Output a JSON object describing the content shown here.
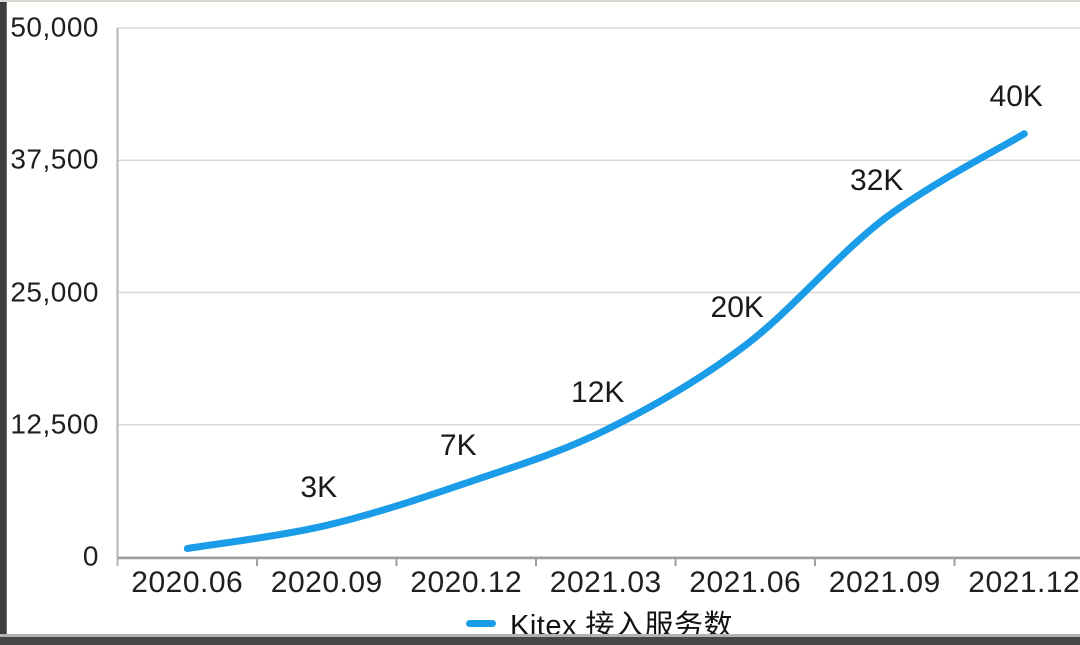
{
  "frame": {
    "left_color": "#3d3d3d",
    "top_line_color": "#d9d8d2",
    "bottom_line_color": "#b2b2b0",
    "bottom_bar_color": "#474747"
  },
  "chart_data": {
    "type": "line",
    "title": "",
    "categories": [
      "2020.06",
      "2020.09",
      "2020.12",
      "2021.03",
      "2021.06",
      "2021.09",
      "2021.12"
    ],
    "series": [
      {
        "name": "Kitex 接入服务数",
        "values": [
          800,
          3000,
          7000,
          12000,
          20000,
          32000,
          40000
        ],
        "point_labels": [
          "",
          "3K",
          "7K",
          "12K",
          "20K",
          "32K",
          "40K"
        ],
        "color": "#1b9ce8"
      }
    ],
    "y_ticks": [
      0,
      12500,
      25000,
      37500,
      50000
    ],
    "y_tick_labels": [
      "0",
      "12,500",
      "25,000",
      "37,500",
      "50,000"
    ],
    "ylim": [
      0,
      50000
    ],
    "grid": "horizontal",
    "smooth": true,
    "legend_position": "bottom-center",
    "colors": {
      "grid": "#d8d8d8",
      "x_axis": "#9e9e9e",
      "y_axis": "#b5b5b5",
      "tick": "#9e9e9e",
      "text": "#1f1f1f"
    }
  }
}
